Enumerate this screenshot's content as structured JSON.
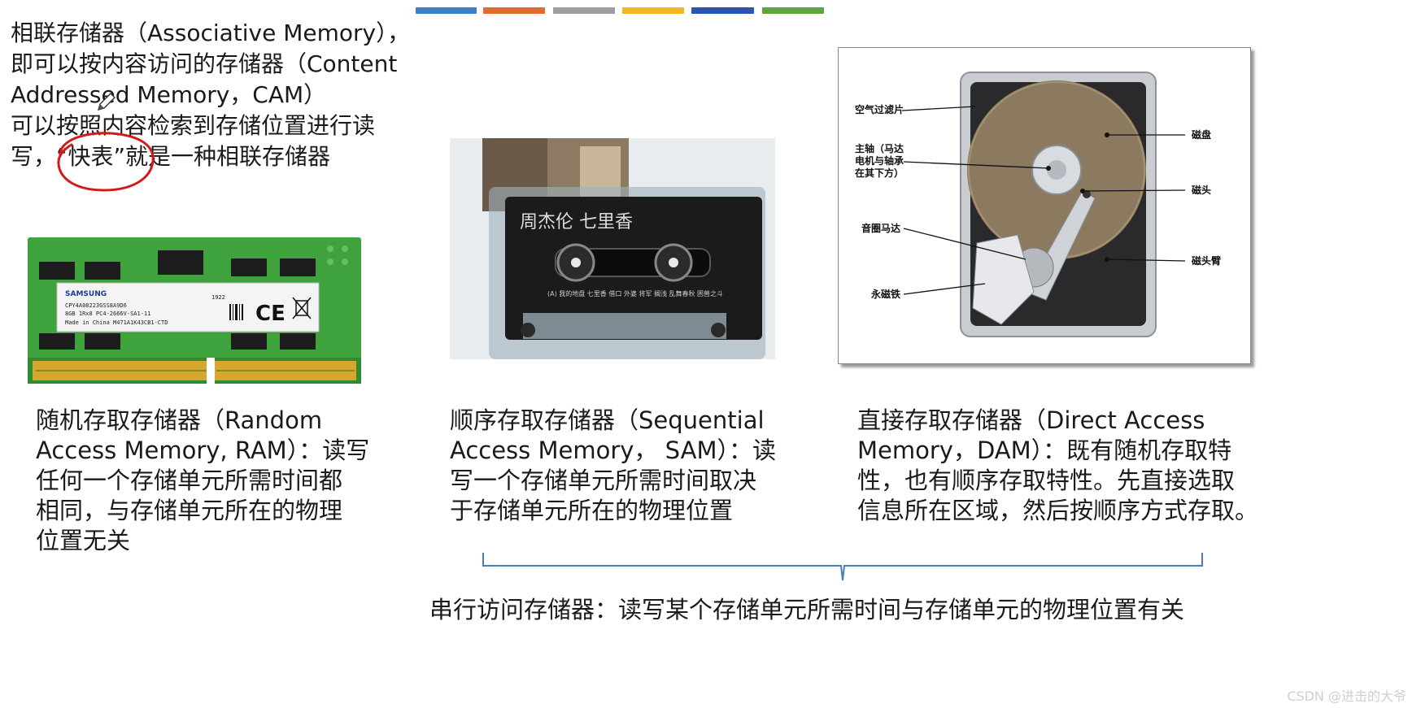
{
  "slide": {
    "accent_bars": [
      "#3b7fc4",
      "#e06c2e",
      "#9e9e9e",
      "#f2b823",
      "#2b55b0",
      "#5ea540"
    ]
  },
  "cam": {
    "line1": "相联存储器（Associative Memory），",
    "line2": "即可以按内容访问的存储器（Content",
    "line3": "Addressed Memory，CAM）",
    "line4": "可以按照内容检索到存储位置进行读",
    "line5": "写，“快表”就是一种相联存储器"
  },
  "ram_card": {
    "brand": "SAMSUNG",
    "sticker_line1": "CPY4A08223GSS8A9D6",
    "sticker_line2": "8GB 1Rx8 PC4-2666V-SA1-11",
    "sticker_line3": "Made in China  M471A1K43CB1-CTD",
    "sticker_code": "1922",
    "ce_mark": "CE"
  },
  "tape": {
    "title": "周杰伦 七里香",
    "tracks": "(A) 我的地盘 七里香 借口 外婆 将军 搁浅 乱舞春秋 困兽之斗"
  },
  "hdd": {
    "labels": {
      "filter": "空气过滤片",
      "spindle_1": "主轴（马达",
      "spindle_2": "电机与轴承",
      "spindle_3": "在其下方）",
      "voice_coil": "音圈马达",
      "magnet": "永磁铁",
      "platter": "磁盘",
      "head": "磁头",
      "arm": "磁头臂"
    }
  },
  "ram": {
    "line1": "随机存取存储器（Random",
    "line2": "Access Memory, RAM）：读写",
    "line3": "任何一个存储单元所需时间都",
    "line4": "相同，与存储单元所在的物理",
    "line5": "位置无关"
  },
  "sam": {
    "line1": "顺序存取存储器（Sequential",
    "line2": "Access Memory， SAM）：读",
    "line3": "写一个存储单元所需时间取决",
    "line4": "于存储单元所在的物理位置"
  },
  "dam": {
    "line1": "直接存取存储器（Direct Access",
    "line2": "Memory，DAM）：既有随机存取特",
    "line3": "性，也有顺序存取特性。先直接选取",
    "line4": "信息所在区域，然后按顺序方式存取。"
  },
  "serial_note": "串行访问存储器：读写某个存储单元所需时间与存储单元的物理位置有关",
  "watermark": "CSDN @进击的大爷"
}
